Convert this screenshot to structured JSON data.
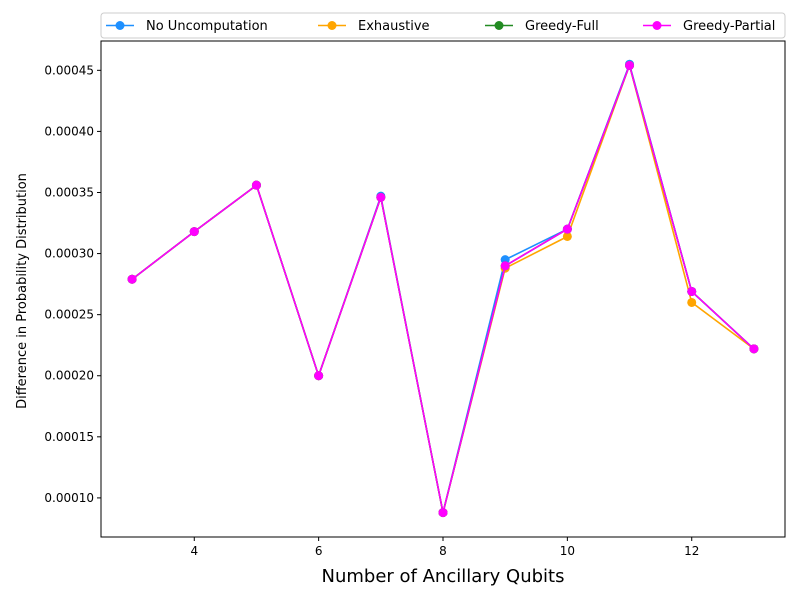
{
  "chart_data": {
    "type": "line",
    "title": "",
    "xlabel": "Number of Ancillary Qubits",
    "ylabel": "Difference in Probability Distribution",
    "x": [
      3,
      4,
      5,
      6,
      7,
      8,
      9,
      10,
      11,
      12,
      13
    ],
    "xlim": [
      2.5,
      13.5
    ],
    "ylim": [
      6.8e-05,
      0.000474
    ],
    "xticks": [
      4,
      6,
      8,
      10,
      12
    ],
    "xtick_labels": [
      "4",
      "6",
      "8",
      "10",
      "12"
    ],
    "yticks": [
      0.0001,
      0.00015,
      0.0002,
      0.00025,
      0.0003,
      0.00035,
      0.0004,
      0.00045
    ],
    "ytick_labels": [
      "0.00010",
      "0.00015",
      "0.00020",
      "0.00025",
      "0.00030",
      "0.00035",
      "0.00040",
      "0.00045"
    ],
    "grid": false,
    "legend_position": "top",
    "markers": "circle",
    "series": [
      {
        "name": "No Uncomputation",
        "color": "#1e90ff",
        "values": [
          0.000279,
          0.000318,
          0.000356,
          0.0002,
          0.000347,
          8.8e-05,
          0.000295,
          0.00032,
          0.000455,
          0.000269,
          0.000222
        ]
      },
      {
        "name": "Exhaustive",
        "color": "#ffa500",
        "values": [
          0.000279,
          0.000318,
          0.000356,
          0.0002,
          0.000346,
          8.8e-05,
          0.000288,
          0.000314,
          0.000454,
          0.00026,
          0.000222
        ]
      },
      {
        "name": "Greedy-Full",
        "color": "#228b22",
        "values": [
          0.000279,
          0.000318,
          0.000356,
          0.0002,
          0.000346,
          8.8e-05,
          0.00029,
          0.00032,
          0.000454,
          0.000269,
          0.000222
        ]
      },
      {
        "name": "Greedy-Partial",
        "color": "#ff00ff",
        "values": [
          0.000279,
          0.000318,
          0.000356,
          0.0002,
          0.000346,
          8.8e-05,
          0.00029,
          0.00032,
          0.000454,
          0.000269,
          0.000222
        ]
      }
    ]
  }
}
